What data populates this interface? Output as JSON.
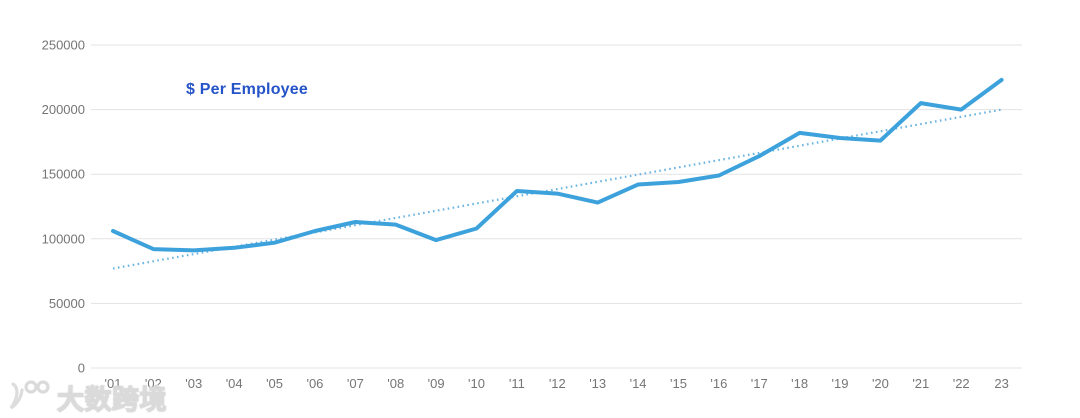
{
  "chart_data": {
    "type": "line",
    "title": "$ Per Employee",
    "title_color": "#2553c8",
    "x_labels": [
      "'01",
      "'02",
      "'03",
      "'04",
      "'05",
      "'06",
      "'07",
      "'08",
      "'09",
      "'10",
      "'11",
      "'12",
      "'13",
      "'14",
      "'15",
      "'16",
      "'17",
      "'18",
      "'19",
      "'20",
      "'21",
      "'22",
      "23"
    ],
    "series": [
      {
        "name": "dollars-per-employee",
        "style": "solid",
        "color": "#3da2dc",
        "values": [
          106000,
          92000,
          91000,
          93000,
          97000,
          106000,
          113000,
          111000,
          99000,
          108000,
          137000,
          135000,
          128000,
          142000,
          144000,
          149000,
          164000,
          182000,
          178000,
          176000,
          205000,
          200000,
          223000
        ]
      },
      {
        "name": "linear-trend",
        "style": "dotted",
        "color": "#69b4e2",
        "start_value": 77000,
        "end_value": 200000
      }
    ],
    "ylim": [
      0,
      250000
    ],
    "y_ticks": [
      0,
      50000,
      100000,
      150000,
      200000,
      250000
    ],
    "y_tick_labels": [
      "0",
      "50000",
      "100000",
      "150000",
      "200000",
      "250000"
    ],
    "grid": "horizontal",
    "gridline_color": "#e3e3e3",
    "axis_label_color": "#757575",
    "legend": "none"
  },
  "watermark": {
    "logo": "100",
    "text": "大数跨境"
  }
}
